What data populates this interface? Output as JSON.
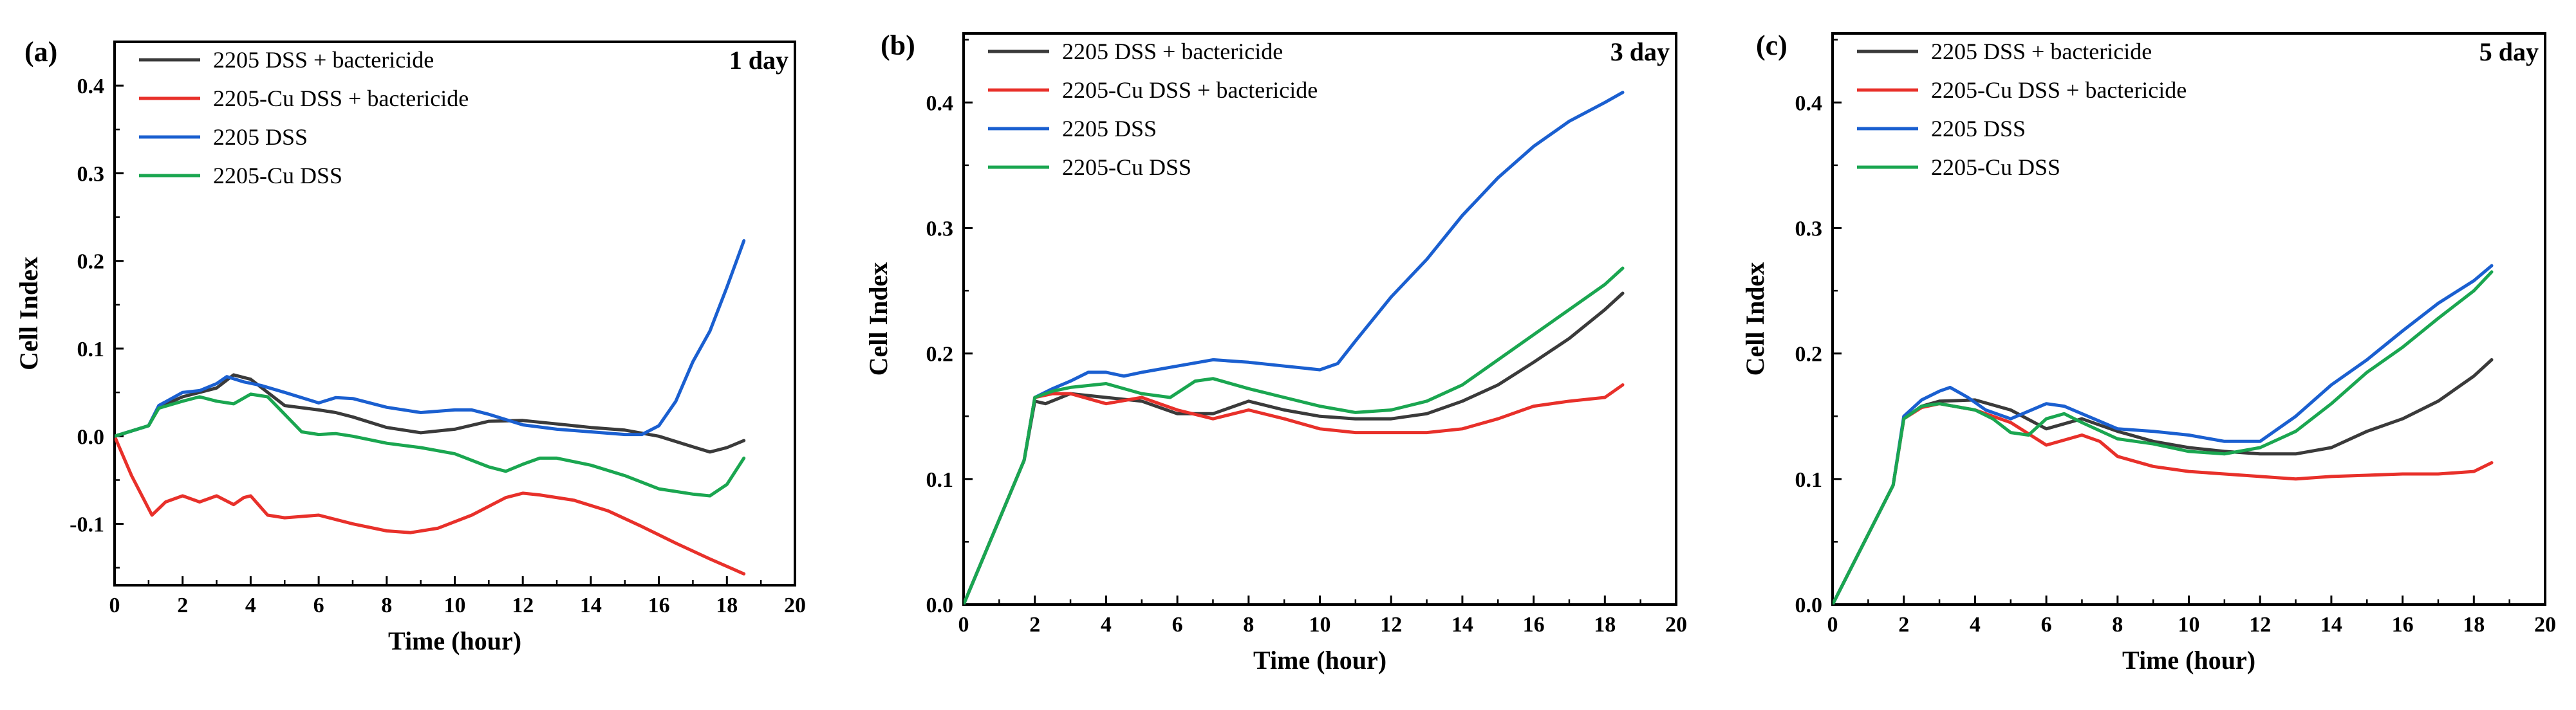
{
  "colors": {
    "2205 DSS + bactericide": "#3a3a3a",
    "2205-Cu DSS + bactericide": "#e8302a",
    "2205 DSS": "#1a5fd0",
    "2205-Cu DSS": "#1aa650"
  },
  "chart_data": [
    {
      "panel": "(a)",
      "day": "1 day",
      "type": "line",
      "xlabel": "Time (hour)",
      "ylabel": "Cell Index",
      "xlim": [
        0,
        20
      ],
      "ylim": [
        -0.17,
        0.45
      ],
      "xticks": [
        0,
        2,
        4,
        6,
        8,
        10,
        12,
        14,
        16,
        18,
        20
      ],
      "yticks": [
        -0.1,
        0.0,
        0.1,
        0.2,
        0.3,
        0.4
      ],
      "ytick_labels": [
        "-0.1",
        "0.0",
        "0.1",
        "0.2",
        "0.3",
        "0.4"
      ],
      "legend": [
        "2205 DSS + bactericide",
        "2205-Cu DSS + bactericide",
        "2205 DSS",
        "2205-Cu DSS"
      ],
      "series": [
        {
          "name": "2205 DSS + bactericide",
          "x": [
            0,
            1,
            1.3,
            2,
            3,
            3.5,
            4,
            5,
            6,
            6.5,
            7,
            8,
            9,
            10,
            11,
            12,
            13,
            14,
            15,
            16,
            17,
            17.5,
            18,
            18.5
          ],
          "y": [
            0,
            0.012,
            0.033,
            0.045,
            0.055,
            0.07,
            0.065,
            0.035,
            0.03,
            0.027,
            0.022,
            0.01,
            0.004,
            0.008,
            0.017,
            0.018,
            0.014,
            0.01,
            0.007,
            0.0,
            -0.012,
            -0.018,
            -0.013,
            -0.005
          ]
        },
        {
          "name": "2205-Cu DSS + bactericide",
          "x": [
            0,
            0.5,
            1.1,
            1.5,
            2,
            2.5,
            3,
            3.5,
            3.8,
            4,
            4.5,
            5,
            6,
            7,
            8,
            8.7,
            9.5,
            10.5,
            11.5,
            12,
            12.5,
            13.5,
            14.5,
            15.5,
            16.5,
            17.5,
            18.5
          ],
          "y": [
            0,
            -0.045,
            -0.09,
            -0.075,
            -0.068,
            -0.075,
            -0.068,
            -0.078,
            -0.07,
            -0.068,
            -0.09,
            -0.093,
            -0.09,
            -0.1,
            -0.108,
            -0.11,
            -0.105,
            -0.09,
            -0.07,
            -0.065,
            -0.067,
            -0.073,
            -0.085,
            -0.103,
            -0.122,
            -0.14,
            -0.157
          ]
        },
        {
          "name": "2205 DSS",
          "x": [
            0,
            1,
            1.3,
            2,
            2.5,
            3,
            3.3,
            3.8,
            4.3,
            5,
            6,
            6.5,
            7,
            8,
            9,
            10,
            10.5,
            11,
            12,
            13,
            14,
            15,
            15.5,
            16,
            16.5,
            17,
            17.5,
            18,
            18.5
          ],
          "y": [
            0,
            0.012,
            0.035,
            0.05,
            0.052,
            0.06,
            0.068,
            0.062,
            0.058,
            0.05,
            0.038,
            0.044,
            0.043,
            0.033,
            0.027,
            0.03,
            0.03,
            0.025,
            0.013,
            0.008,
            0.005,
            0.002,
            0.002,
            0.012,
            0.04,
            0.085,
            0.12,
            0.17,
            0.223
          ]
        },
        {
          "name": "2205-Cu DSS",
          "x": [
            0,
            1,
            1.3,
            2,
            2.5,
            3,
            3.5,
            4,
            4.5,
            5,
            5.5,
            6,
            6.5,
            7,
            8,
            9,
            10,
            11,
            11.5,
            12,
            12.5,
            13,
            14,
            15,
            16,
            17,
            17.5,
            18,
            18.5
          ],
          "y": [
            0,
            0.012,
            0.032,
            0.04,
            0.045,
            0.04,
            0.037,
            0.048,
            0.045,
            0.025,
            0.005,
            0.002,
            0.003,
            0.0,
            -0.008,
            -0.013,
            -0.02,
            -0.035,
            -0.04,
            -0.032,
            -0.025,
            -0.025,
            -0.033,
            -0.045,
            -0.06,
            -0.066,
            -0.068,
            -0.055,
            -0.025
          ]
        }
      ]
    },
    {
      "panel": "(b)",
      "day": "3 day",
      "type": "line",
      "xlabel": "Time (hour)",
      "ylabel": "Cell Index",
      "xlim": [
        0,
        20
      ],
      "ylim": [
        0,
        0.455
      ],
      "xticks": [
        0,
        2,
        4,
        6,
        8,
        10,
        12,
        14,
        16,
        18,
        20
      ],
      "yticks": [
        0.0,
        0.1,
        0.2,
        0.3,
        0.4
      ],
      "ytick_labels": [
        "0.0",
        "0.1",
        "0.2",
        "0.3",
        "0.4"
      ],
      "legend": [
        "2205 DSS + bactericide",
        "2205-Cu DSS + bactericide",
        "2205 DSS",
        "2205-Cu DSS"
      ],
      "series": [
        {
          "name": "2205 DSS + bactericide",
          "x": [
            0,
            1.7,
            2.0,
            2.3,
            3,
            4,
            5,
            6,
            7,
            8,
            9,
            10,
            11,
            12,
            13,
            14,
            15,
            16,
            17,
            18,
            18.5
          ],
          "y": [
            0,
            0.115,
            0.162,
            0.16,
            0.168,
            0.165,
            0.162,
            0.152,
            0.152,
            0.162,
            0.155,
            0.15,
            0.148,
            0.148,
            0.152,
            0.162,
            0.175,
            0.193,
            0.212,
            0.235,
            0.248
          ]
        },
        {
          "name": "2205-Cu DSS + bactericide",
          "x": [
            0,
            1.7,
            2.0,
            2.5,
            3,
            4,
            5,
            6,
            7,
            8,
            9,
            10,
            11,
            12,
            13,
            14,
            15,
            16,
            17,
            18,
            18.5
          ],
          "y": [
            0,
            0.115,
            0.165,
            0.168,
            0.168,
            0.16,
            0.165,
            0.155,
            0.148,
            0.155,
            0.148,
            0.14,
            0.137,
            0.137,
            0.137,
            0.14,
            0.148,
            0.158,
            0.162,
            0.165,
            0.175
          ]
        },
        {
          "name": "2205 DSS",
          "x": [
            0,
            1.7,
            2.0,
            2.5,
            3,
            3.5,
            4,
            4.5,
            5,
            6,
            7,
            8,
            9,
            10,
            10.5,
            11,
            12,
            13,
            14,
            15,
            16,
            17,
            18,
            18.5
          ],
          "y": [
            0,
            0.115,
            0.165,
            0.172,
            0.178,
            0.185,
            0.185,
            0.182,
            0.185,
            0.19,
            0.195,
            0.193,
            0.19,
            0.187,
            0.192,
            0.21,
            0.245,
            0.275,
            0.31,
            0.34,
            0.365,
            0.385,
            0.4,
            0.408
          ]
        },
        {
          "name": "2205-Cu DSS",
          "x": [
            0,
            1.7,
            2.0,
            2.5,
            3,
            4,
            5,
            5.8,
            6.5,
            7,
            8,
            9,
            10,
            11,
            12,
            13,
            14,
            15,
            16,
            17,
            18,
            18.5
          ],
          "y": [
            0,
            0.115,
            0.165,
            0.17,
            0.173,
            0.176,
            0.168,
            0.165,
            0.178,
            0.18,
            0.172,
            0.165,
            0.158,
            0.153,
            0.155,
            0.162,
            0.175,
            0.195,
            0.215,
            0.235,
            0.255,
            0.268
          ]
        }
      ]
    },
    {
      "panel": "(c)",
      "day": "5 day",
      "type": "line",
      "xlabel": "Time (hour)",
      "ylabel": "Cell Index",
      "xlim": [
        0,
        20
      ],
      "ylim": [
        0,
        0.455
      ],
      "xticks": [
        0,
        2,
        4,
        6,
        8,
        10,
        12,
        14,
        16,
        18,
        20
      ],
      "yticks": [
        0.0,
        0.1,
        0.2,
        0.3,
        0.4
      ],
      "ytick_labels": [
        "0.0",
        "0.1",
        "0.2",
        "0.3",
        "0.4"
      ],
      "legend": [
        "2205 DSS + bactericide",
        "2205-Cu DSS + bactericide",
        "2205 DSS",
        "2205-Cu DSS"
      ],
      "series": [
        {
          "name": "2205 DSS + bactericide",
          "x": [
            0,
            1.7,
            2.0,
            2.5,
            3,
            4,
            5,
            6,
            7,
            8,
            9,
            10,
            11,
            12,
            13,
            14,
            15,
            16,
            17,
            18,
            18.5
          ],
          "y": [
            0,
            0.095,
            0.148,
            0.158,
            0.162,
            0.163,
            0.155,
            0.14,
            0.148,
            0.138,
            0.13,
            0.125,
            0.122,
            0.12,
            0.12,
            0.125,
            0.138,
            0.148,
            0.162,
            0.182,
            0.195
          ]
        },
        {
          "name": "2205-Cu DSS + bactericide",
          "x": [
            0,
            1.7,
            2.0,
            2.5,
            3,
            4,
            5,
            6,
            7,
            7.5,
            8,
            9,
            10,
            11,
            12,
            13,
            14,
            15,
            16,
            17,
            18,
            18.5
          ],
          "y": [
            0,
            0.095,
            0.148,
            0.157,
            0.16,
            0.155,
            0.145,
            0.127,
            0.135,
            0.13,
            0.118,
            0.11,
            0.106,
            0.104,
            0.102,
            0.1,
            0.102,
            0.103,
            0.104,
            0.104,
            0.106,
            0.113
          ]
        },
        {
          "name": "2205 DSS",
          "x": [
            0,
            1.7,
            2.0,
            2.5,
            3,
            3.3,
            3.8,
            4.3,
            5,
            6,
            6.5,
            7,
            8,
            9,
            10,
            11,
            12,
            13,
            14,
            15,
            16,
            17,
            18,
            18.5
          ],
          "y": [
            0,
            0.095,
            0.15,
            0.163,
            0.17,
            0.173,
            0.165,
            0.155,
            0.148,
            0.16,
            0.158,
            0.152,
            0.14,
            0.138,
            0.135,
            0.13,
            0.13,
            0.15,
            0.175,
            0.195,
            0.218,
            0.24,
            0.258,
            0.27
          ]
        },
        {
          "name": "2205-Cu DSS",
          "x": [
            0,
            1.7,
            2.0,
            2.5,
            3,
            4,
            4.5,
            5,
            5.5,
            6,
            6.5,
            7,
            8,
            9,
            10,
            11,
            12,
            13,
            14,
            15,
            16,
            17,
            18,
            18.5
          ],
          "y": [
            0,
            0.095,
            0.148,
            0.158,
            0.16,
            0.155,
            0.148,
            0.137,
            0.135,
            0.148,
            0.152,
            0.145,
            0.132,
            0.128,
            0.122,
            0.12,
            0.125,
            0.138,
            0.16,
            0.185,
            0.205,
            0.228,
            0.25,
            0.265
          ]
        }
      ]
    }
  ]
}
